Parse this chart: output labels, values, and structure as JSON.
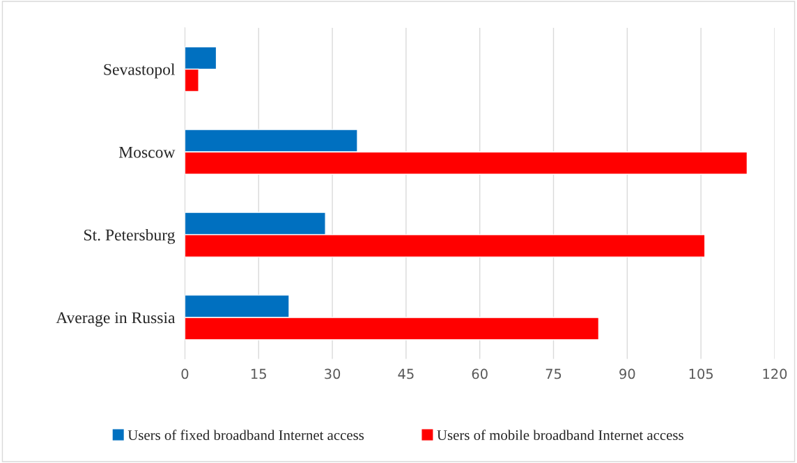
{
  "chart_data": {
    "type": "bar",
    "orientation": "horizontal",
    "categories": [
      "Sevastopol",
      "Moscow",
      "St. Petersburg",
      "Average in Russia"
    ],
    "series": [
      {
        "name": "Users of fixed broadband Internet access",
        "color": "#0070c0",
        "values": [
          6.4,
          35.1,
          28.6,
          21.2
        ]
      },
      {
        "name": "Users of mobile broadband Internet access",
        "color": "#ff0000",
        "values": [
          2.8,
          114.4,
          105.8,
          84.2
        ]
      }
    ],
    "xlim": [
      0,
      120
    ],
    "xticks": [
      0,
      15,
      30,
      45,
      60,
      75,
      90,
      105,
      120
    ],
    "grid": "x",
    "legend": "bottom"
  }
}
